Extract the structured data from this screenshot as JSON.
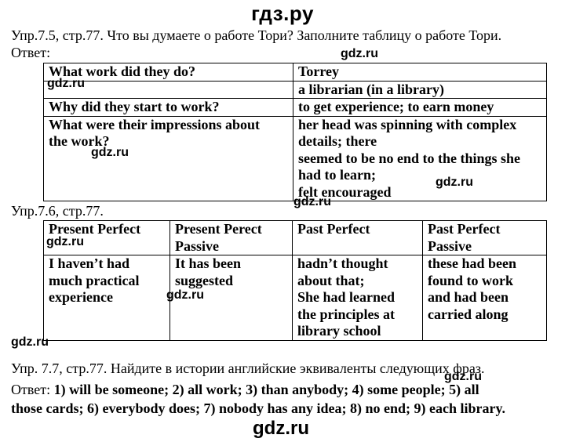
{
  "header": {
    "site_title": "гдз.ру"
  },
  "watermark": "gdz.ru",
  "ex75": {
    "task": "Упр.7.5, стр.77. Что вы думаете о работе Тори? Заполните таблицу о работе Тори.",
    "answer_label": "Ответ:",
    "table": {
      "header_q": "What work did they do?",
      "header_name": "Torrey",
      "r1_answer": "a librarian (in a library)",
      "r2_q": "Why did they start to work?",
      "r2_answer": "to get experience; to earn money",
      "r3_q_line1": "What were their impressions about",
      "r3_q_line2": "the work?",
      "r3_a_line1": "her head was spinning with complex",
      "r3_a_line2": "details; there",
      "r3_a_line3": "seemed to be no end to the things she",
      "r3_a_line4": "had to learn;",
      "r3_a_line5": "felt encouraged"
    }
  },
  "ex76": {
    "task": "Упр.7.6, стр.77.",
    "table": {
      "h1": "Present Perfect",
      "h2_line1": "Present Perect",
      "h2_line2": "Passive",
      "h3": "Past Perfect",
      "h4_line1": "Past Perfect",
      "h4_line2": "Passive",
      "c1_line1": "I haven’t had",
      "c1_line2": "much practical",
      "c1_line3": "experience",
      "c2_line1": "It has been",
      "c2_line2": "suggested",
      "c3_line1": "hadn’t thought",
      "c3_line2": "about that;",
      "c3_line3": "She had learned",
      "c3_line4": "the principles at",
      "c3_line5": "library school",
      "c4_line1": "these had been",
      "c4_line2": "found to work",
      "c4_line3": "and had been",
      "c4_line4": "carried along"
    }
  },
  "ex77": {
    "task": "Упр. 7.7, стр.77. Найдите в истории английские эквиваленты следующих фраз.",
    "answer_label": "Ответ:",
    "answer_line1": "1) will be someone; 2) all work; 3) than anybody; 4) some people; 5) all",
    "answer_line2": "those cards; 6) everybody does; 7) nobody has any idea; 8) no end; 9) each library."
  }
}
